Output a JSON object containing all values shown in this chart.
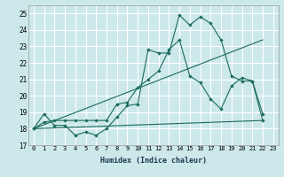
{
  "xlabel": "Humidex (Indice chaleur)",
  "bg_color": "#cce8ea",
  "grid_color": "#ffffff",
  "line_color": "#1a6b5a",
  "x_ticks": [
    0,
    1,
    2,
    3,
    4,
    5,
    6,
    7,
    8,
    9,
    10,
    11,
    12,
    13,
    14,
    15,
    16,
    17,
    18,
    19,
    20,
    21,
    22,
    23
  ],
  "ylim": [
    17,
    25.5
  ],
  "xlim": [
    -0.5,
    23.5
  ],
  "yticks": [
    17,
    18,
    19,
    20,
    21,
    22,
    23,
    24,
    25
  ],
  "line1_x": [
    0,
    1,
    2,
    3,
    4,
    5,
    6,
    7,
    8,
    9,
    10,
    11,
    12,
    13,
    14,
    15,
    16,
    17,
    18,
    19,
    20,
    21,
    22
  ],
  "line1_y": [
    18.0,
    18.9,
    18.2,
    18.2,
    17.6,
    17.8,
    17.6,
    18.0,
    18.7,
    19.4,
    19.5,
    22.8,
    22.6,
    22.6,
    24.9,
    24.3,
    24.8,
    24.4,
    23.4,
    21.2,
    20.9,
    20.9,
    18.5
  ],
  "line2_x": [
    0,
    22
  ],
  "line2_y": [
    18.0,
    23.4
  ],
  "line3_x": [
    0,
    22
  ],
  "line3_y": [
    18.0,
    18.5
  ],
  "line4_x": [
    0,
    1,
    2,
    3,
    4,
    5,
    6,
    7,
    8,
    9,
    10,
    11,
    12,
    13,
    14,
    15,
    16,
    17,
    18,
    19,
    20,
    21,
    22
  ],
  "line4_y": [
    18.0,
    18.4,
    18.5,
    18.5,
    18.5,
    18.5,
    18.5,
    18.5,
    19.5,
    19.6,
    20.5,
    21.0,
    21.5,
    22.8,
    23.4,
    21.2,
    20.8,
    19.8,
    19.2,
    20.6,
    21.1,
    20.9,
    18.9
  ]
}
